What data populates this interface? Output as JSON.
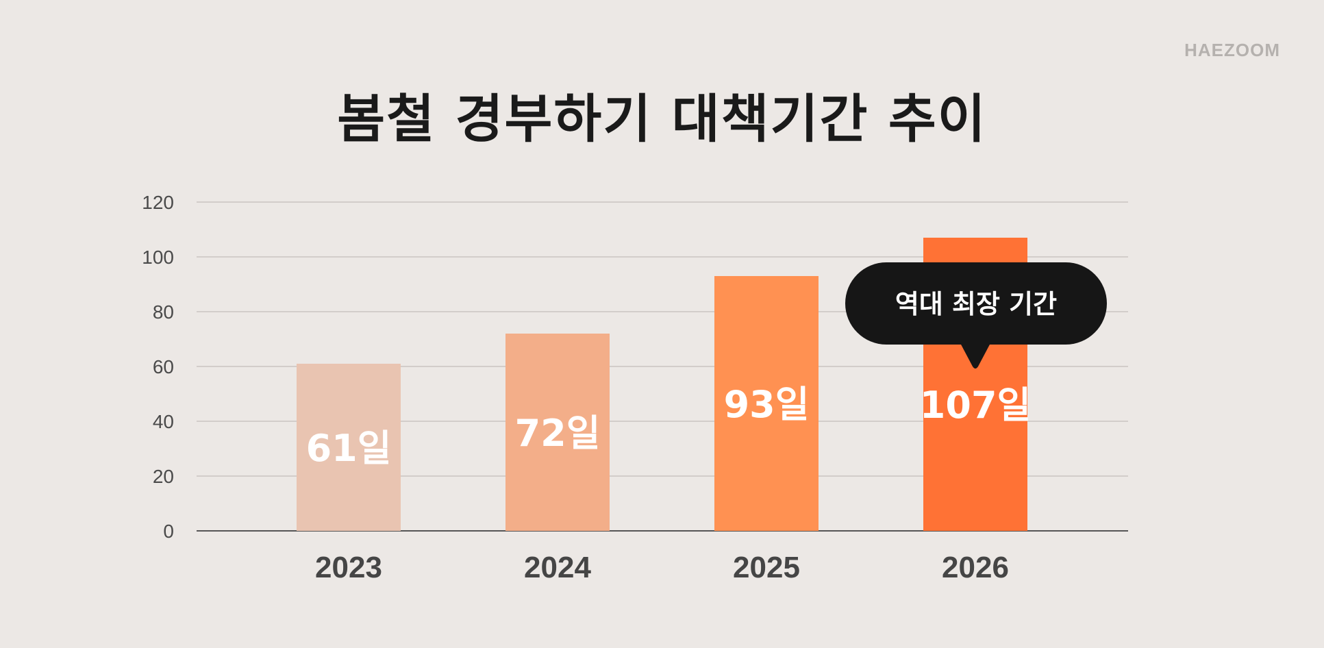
{
  "brand": "HAEZOOM",
  "chart_data": {
    "type": "bar",
    "title": "봄철 경부하기 대책기간 추이",
    "categories": [
      "2023",
      "2024",
      "2025",
      "2026"
    ],
    "values": [
      61,
      72,
      93,
      107
    ],
    "value_labels": [
      "61일",
      "72일",
      "93일",
      "107일"
    ],
    "bar_colors": [
      "#e9c4b1",
      "#f3ae89",
      "#ff9152",
      "#ff7235"
    ],
    "ylim": [
      0,
      120
    ],
    "yticks": [
      0,
      20,
      40,
      60,
      80,
      100,
      120
    ],
    "grid": true,
    "annotation": {
      "text": "역대 최장 기간",
      "category": "2026"
    }
  }
}
